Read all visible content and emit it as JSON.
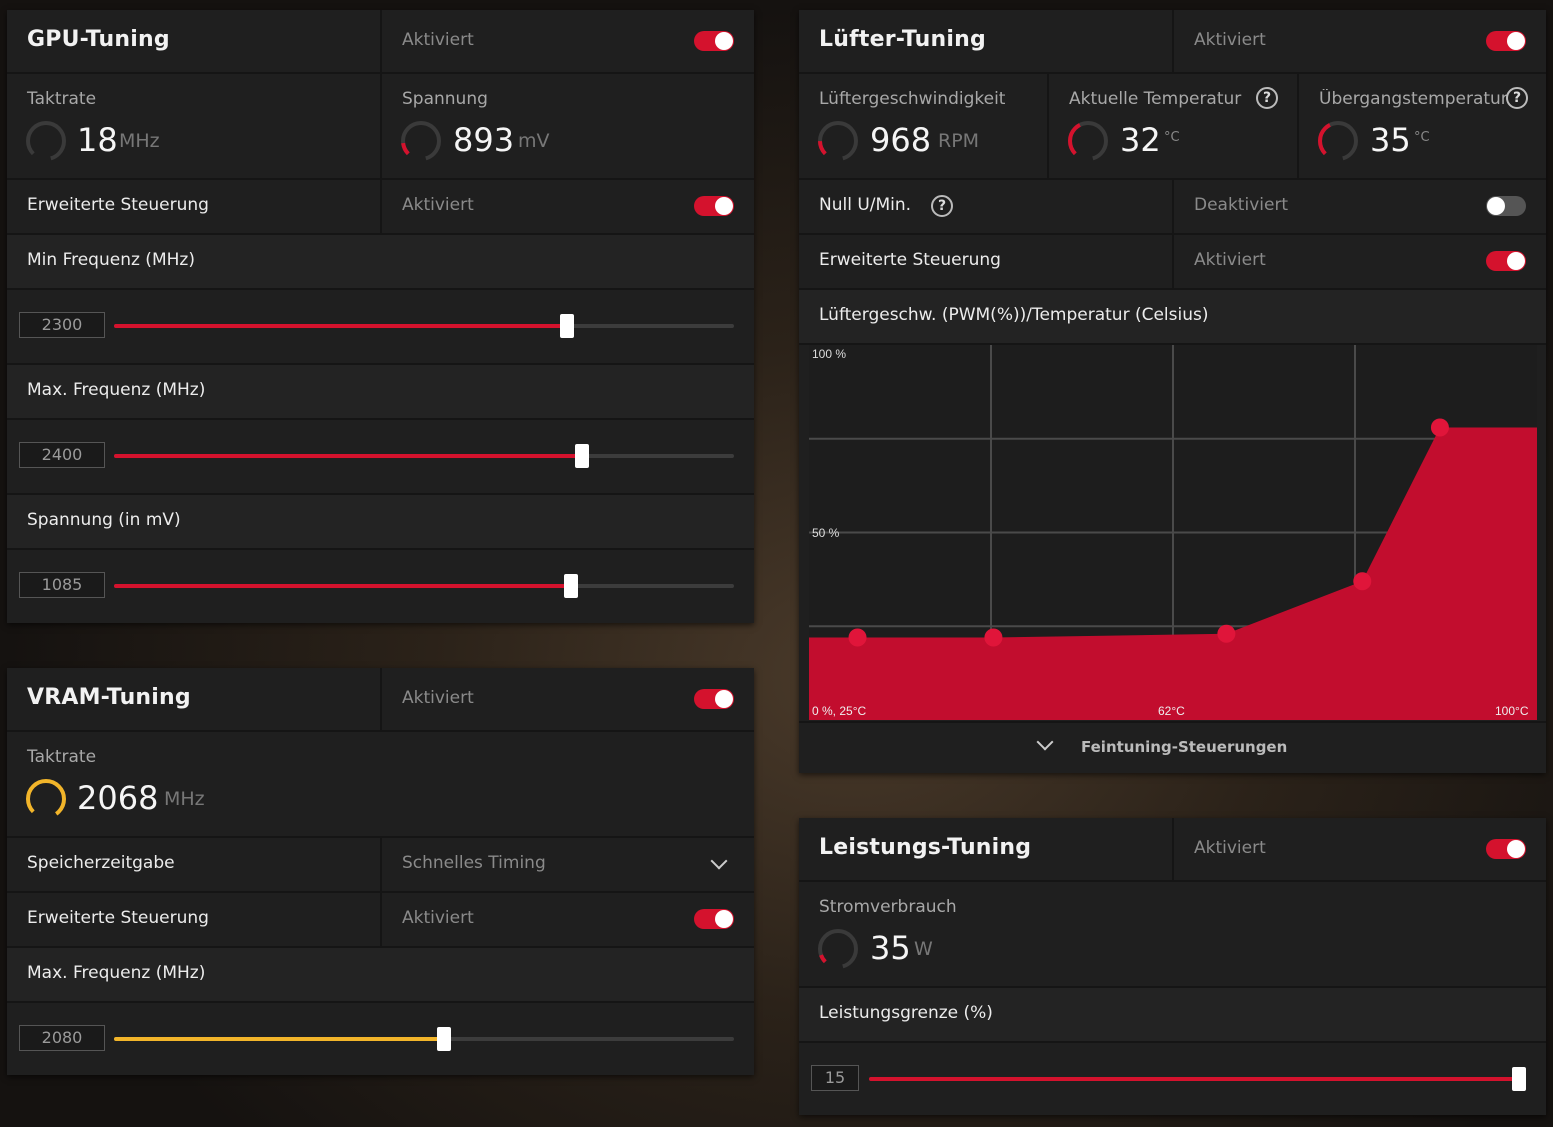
{
  "colors": {
    "accent": "#d4122d",
    "vram_accent": "#f2b52a",
    "panel": "#1f1f1f",
    "chart_fill": "#c20d2e"
  },
  "gpu": {
    "title": "GPU-Tuning",
    "status": "Aktiviert",
    "enabled": true,
    "clock": {
      "label": "Taktrate",
      "value": "18",
      "unit": "MHz"
    },
    "voltage": {
      "label": "Spannung",
      "value": "893",
      "unit": "mV"
    },
    "advanced": {
      "label": "Erweiterte Steuerung",
      "status": "Aktiviert",
      "enabled": true
    },
    "min_freq": {
      "label": "Min Frequenz (MHz)",
      "value": "2300",
      "fraction": 0.73
    },
    "max_freq": {
      "label": "Max. Frequenz (MHz)",
      "value": "2400",
      "fraction": 0.755
    },
    "volt_slider": {
      "label": "Spannung (in mV)",
      "value": "1085",
      "fraction": 0.737
    }
  },
  "vram": {
    "title": "VRAM-Tuning",
    "status": "Aktiviert",
    "enabled": true,
    "clock": {
      "label": "Taktrate",
      "value": "2068",
      "unit": "MHz"
    },
    "timing": {
      "label": "Speicherzeitgabe",
      "value": "Schnelles Timing"
    },
    "advanced": {
      "label": "Erweiterte Steuerung",
      "status": "Aktiviert",
      "enabled": true
    },
    "max_freq": {
      "label": "Max. Frequenz (MHz)",
      "value": "2080",
      "fraction": 0.532
    }
  },
  "fan": {
    "title": "Lüfter-Tuning",
    "status": "Aktiviert",
    "enabled": true,
    "speed": {
      "label": "Lüftergeschwindigkeit",
      "value": "968",
      "unit": "RPM"
    },
    "temp": {
      "label": "Aktuelle Temperatur",
      "value": "32",
      "unit": "°C"
    },
    "junction": {
      "label": "Übergangstemperatur",
      "value": "35",
      "unit": "°C"
    },
    "zero_rpm": {
      "label": "Null U/Min.",
      "status": "Deaktiviert",
      "enabled": false
    },
    "advanced": {
      "label": "Erweiterte Steuerung",
      "status": "Aktiviert",
      "enabled": true
    },
    "curve_title": "Lüftergeschw. (PWM(%))/Temperatur (Celsius)",
    "fine_tune": "Feintuning-Steuerungen"
  },
  "chart_data": {
    "type": "area",
    "title": "Lüftergeschw. (PWM(%))/Temperatur (Celsius)",
    "y_tick_labels": [
      "100 %",
      "50 %"
    ],
    "x_tick_labels": [
      "0 %, 25°C",
      "62°C",
      "100°C"
    ],
    "xlim": [
      25,
      100
    ],
    "ylim": [
      0,
      100
    ],
    "grid": true,
    "x": [
      30,
      44,
      68,
      82,
      90
    ],
    "values": [
      22,
      22,
      23,
      37,
      78
    ]
  },
  "power": {
    "title": "Leistungs-Tuning",
    "status": "Aktiviert",
    "enabled": true,
    "consumption": {
      "label": "Stromverbrauch",
      "value": "35",
      "unit": "W"
    },
    "limit": {
      "label": "Leistungsgrenze (%)",
      "value": "15",
      "fraction": 1.0
    }
  },
  "icons": {
    "help": "?",
    "chevron": "chevron-down-icon"
  }
}
